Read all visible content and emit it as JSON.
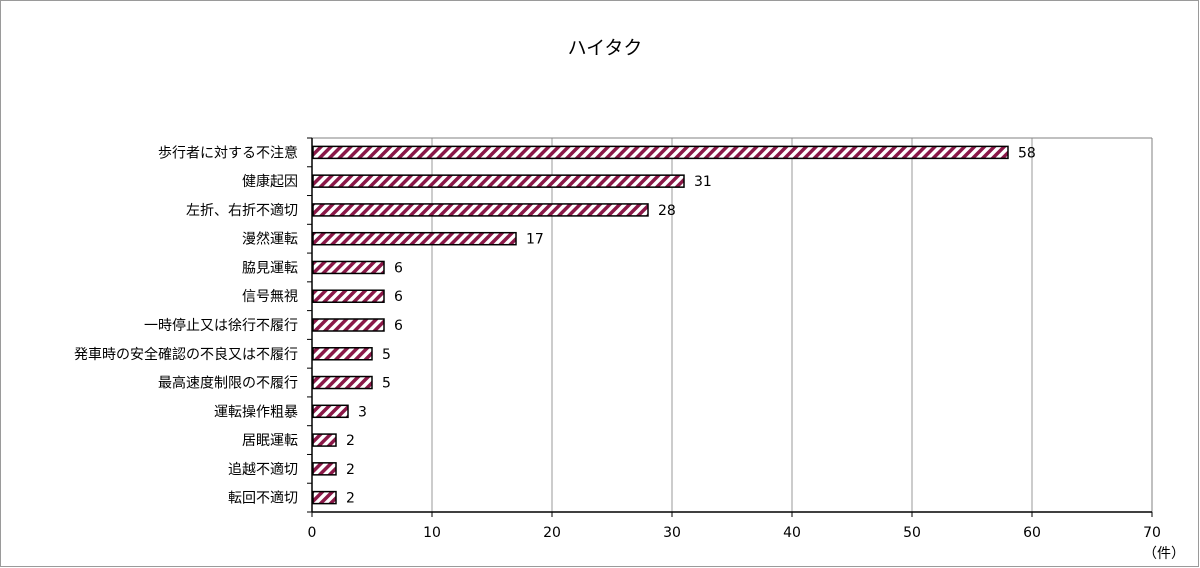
{
  "chart_data": {
    "type": "bar",
    "orientation": "horizontal",
    "title": "ハイタク",
    "categories": [
      "歩行者に対する不注意",
      "健康起因",
      "左折、右折不適切",
      "漫然運転",
      "脇見運転",
      "信号無視",
      "一時停止又は徐行不履行",
      "発車時の安全確認の不良又は不履行",
      "最高速度制限の不履行",
      "運転操作粗暴",
      "居眠運転",
      "追越不適切",
      "転回不適切"
    ],
    "values": [
      58,
      31,
      28,
      17,
      6,
      6,
      6,
      5,
      5,
      3,
      2,
      2,
      2
    ],
    "xlim": [
      0,
      70
    ],
    "xticks": [
      0,
      10,
      20,
      30,
      40,
      50,
      60,
      70
    ],
    "xlabel": "（件）",
    "ylabel": "",
    "grid": true,
    "legend": "none",
    "bar_fill": "hatched",
    "colors": {
      "bar_stripe": "#8a1848",
      "bar_background": "#ffffff",
      "bar_border": "#000000",
      "gridline": "#999999",
      "axis": "#000000"
    }
  }
}
